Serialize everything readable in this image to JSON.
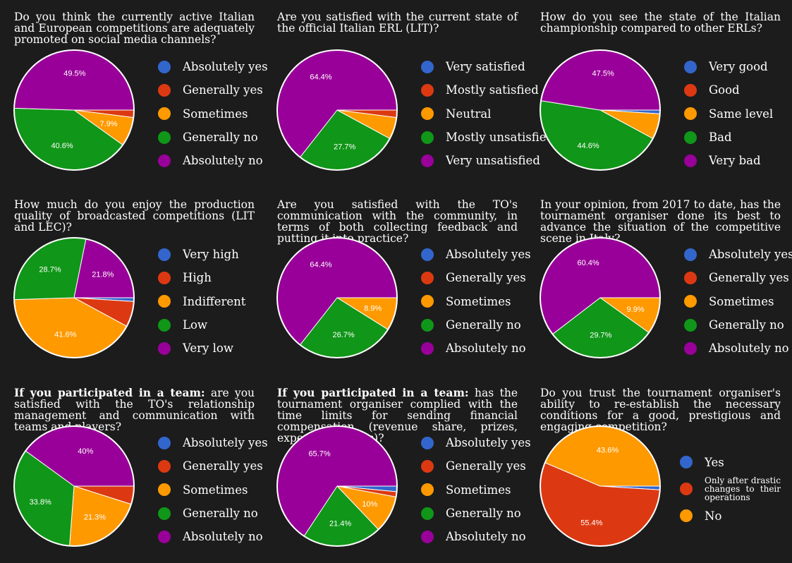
{
  "colors": {
    "background": "#1c1c1c",
    "blue": "#3366cc",
    "red": "#dc3912",
    "orange": "#ff9900",
    "green": "#109618",
    "purple": "#990099"
  },
  "chart_data": [
    {
      "type": "pie",
      "title_bold": "",
      "title": "Do you think the currently active Italian and European competitions are adequately promoted on social media channels?",
      "legend_labels": [
        "Absolutely yes",
        "Generally yes",
        "Sometimes",
        "Generally no",
        "Absolutely no"
      ],
      "values": [
        0,
        2.0,
        7.9,
        40.6,
        49.5
      ],
      "data_labels": [
        "",
        "",
        "7.9%",
        "40.6%",
        "49.5%"
      ],
      "series_colors": [
        "#3366cc",
        "#dc3912",
        "#ff9900",
        "#109618",
        "#990099"
      ]
    },
    {
      "type": "pie",
      "title_bold": "",
      "title": "Are you satisfied with the current state of the official Italian ERL (LIT)?",
      "legend_labels": [
        "Very satisfied",
        "Mostly satisfied",
        "Neutral",
        "Mostly unsatisfied",
        "Very unsatisfied"
      ],
      "values": [
        0,
        2.0,
        5.9,
        27.7,
        64.4
      ],
      "data_labels": [
        "",
        "",
        "",
        "27.7%",
        "64.4%"
      ],
      "series_colors": [
        "#3366cc",
        "#dc3912",
        "#ff9900",
        "#109618",
        "#990099"
      ]
    },
    {
      "type": "pie",
      "title_bold": "",
      "title": "How do you see the state of the Italian championship compared to other ERLs?",
      "legend_labels": [
        "Very good",
        "Good",
        "Same level",
        "Bad",
        "Very bad"
      ],
      "values": [
        1.0,
        0,
        6.9,
        44.6,
        47.5
      ],
      "data_labels": [
        "",
        "",
        "",
        "44.6%",
        "47.5%"
      ],
      "series_colors": [
        "#3366cc",
        "#dc3912",
        "#ff9900",
        "#109618",
        "#990099"
      ]
    },
    {
      "type": "pie",
      "title_bold": "",
      "title": "How much do you enjoy the production quality of broadcasted competitions (LIT and LEC)?",
      "legend_labels": [
        "Very high",
        "High",
        "Indifferent",
        "Low",
        "Very low"
      ],
      "values": [
        1.0,
        6.9,
        41.6,
        28.7,
        21.8
      ],
      "data_labels": [
        "",
        "",
        "41.6%",
        "28.7%",
        "21.8%"
      ],
      "series_colors": [
        "#3366cc",
        "#dc3912",
        "#ff9900",
        "#109618",
        "#990099"
      ]
    },
    {
      "type": "pie",
      "title_bold": "",
      "title": "Are you satisfied with the TO's communication with the community, in terms of both collecting feedback and putting it into practice?",
      "legend_labels": [
        "Absolutely yes",
        "Generally yes",
        "Sometimes",
        "Generally no",
        "Absolutely no"
      ],
      "values": [
        0,
        0,
        8.9,
        26.7,
        64.4
      ],
      "data_labels": [
        "",
        "",
        "8.9%",
        "26.7%",
        "64.4%"
      ],
      "series_colors": [
        "#3366cc",
        "#dc3912",
        "#ff9900",
        "#109618",
        "#990099"
      ]
    },
    {
      "type": "pie",
      "title_bold": "",
      "title": "In your opinion, from 2017 to date, has the tournament organiser done its best to advance the situation of the competitive scene in Italy?",
      "legend_labels": [
        "Absolutely yes",
        "Generally yes",
        "Sometimes",
        "Generally no",
        "Absolutely no"
      ],
      "values": [
        0,
        0,
        9.9,
        29.7,
        60.4
      ],
      "data_labels": [
        "",
        "",
        "9.9%",
        "29.7%",
        "60.4%"
      ],
      "series_colors": [
        "#3366cc",
        "#dc3912",
        "#ff9900",
        "#109618",
        "#990099"
      ]
    },
    {
      "type": "pie",
      "title_bold": "If you participated in a team:",
      "title": "are you satisfied with the TO's relationship management and communication with teams and players?",
      "legend_labels": [
        "Absolutely yes",
        "Generally yes",
        "Sometimes",
        "Generally no",
        "Absolutely no"
      ],
      "values": [
        0,
        4.9,
        21.3,
        33.8,
        40
      ],
      "data_labels": [
        "",
        "",
        "21.3%",
        "33.8%",
        "40%"
      ],
      "series_colors": [
        "#3366cc",
        "#dc3912",
        "#ff9900",
        "#109618",
        "#990099"
      ]
    },
    {
      "type": "pie",
      "title_bold": "If you participated in a team:",
      "title": "has the tournament organiser complied with the time limits for sending financial compensation (revenue share, prizes, expenses refunds)?",
      "legend_labels": [
        "Absolutely yes",
        "Generally yes",
        "Sometimes",
        "Generally no",
        "Absolutely no"
      ],
      "values": [
        1.5,
        1.4,
        10,
        21.4,
        65.7
      ],
      "data_labels": [
        "",
        "",
        "10%",
        "21.4%",
        "65.7%"
      ],
      "series_colors": [
        "#3366cc",
        "#dc3912",
        "#ff9900",
        "#109618",
        "#990099"
      ]
    },
    {
      "type": "pie",
      "title_bold": "",
      "title": "Do you trust the tournament organiser's ability to re-establish the necessary conditions for a good, prestigious and engaging competition?",
      "legend_labels": [
        "Yes",
        "Only after drastic changes to their operations",
        "No"
      ],
      "values": [
        1.0,
        55.4,
        43.6
      ],
      "data_labels": [
        "",
        "55.4%",
        "43.6%"
      ],
      "series_colors": [
        "#3366cc",
        "#dc3912",
        "#ff9900"
      ]
    }
  ]
}
